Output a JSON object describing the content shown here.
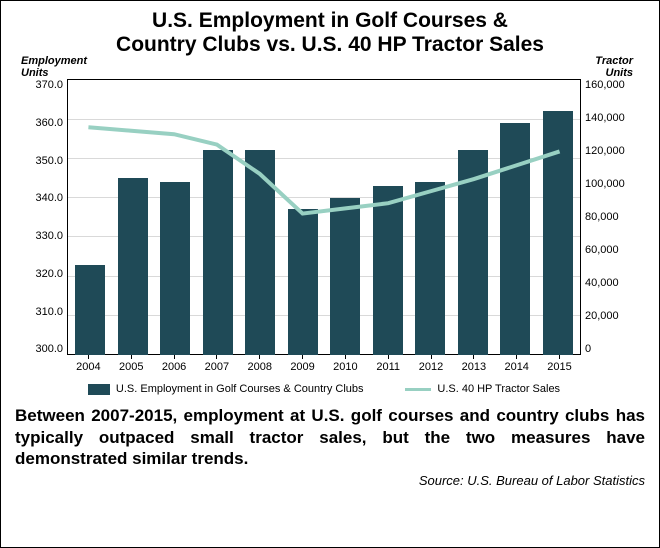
{
  "title_line1": "U.S. Employment in Golf Courses &",
  "title_line2": "Country Clubs vs. U.S. 40 HP Tractor Sales",
  "chart": {
    "type": "bar+line",
    "background_color": "#ffffff",
    "grid_color": "#d9d9d9",
    "border_color": "#000000",
    "bar_color": "#1f4a57",
    "line_color": "#98d0c2",
    "line_width": 4,
    "bar_width": 0.7,
    "y_left": {
      "title": "Employment Units",
      "min": 300,
      "max": 370,
      "step": 10,
      "labels": [
        "370.0",
        "360.0",
        "350.0",
        "340.0",
        "330.0",
        "320.0",
        "310.0",
        "300.0"
      ]
    },
    "y_right": {
      "title": "Tractor Units",
      "min": 0,
      "max": 160000,
      "step": 20000,
      "labels": [
        "160,000",
        "140,000",
        "120,000",
        "100,000",
        "80,000",
        "60,000",
        "40,000",
        "20,000",
        "0"
      ]
    },
    "categories": [
      "2004",
      "2005",
      "2006",
      "2007",
      "2008",
      "2009",
      "2010",
      "2011",
      "2012",
      "2013",
      "2014",
      "2015"
    ],
    "bars_series": {
      "label": "U.S. Employment in Golf Courses & Country Clubs",
      "values": [
        323,
        345,
        344,
        352,
        352,
        337,
        340,
        343,
        344,
        352,
        359,
        362
      ]
    },
    "line_series": {
      "label": "U.S. 40 HP Tractor Sales",
      "values": [
        132000,
        130000,
        128000,
        122000,
        105000,
        82000,
        85000,
        88000,
        95000,
        102000,
        110000,
        118000
      ]
    },
    "title_fontsize": 21,
    "label_fontsize": 11,
    "caption_fontsize": 17
  },
  "caption": "Between 2007-2015, employment at U.S. golf courses and country clubs has typically outpaced small tractor sales, but the two measures have demonstrated similar trends.",
  "source": "Source: U.S. Bureau of Labor Statistics"
}
